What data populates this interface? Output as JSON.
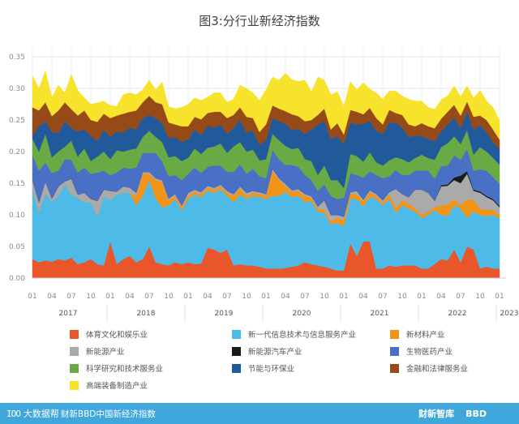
{
  "chart_data": {
    "type": "area",
    "stacked": true,
    "title": "图3:分行业新经济指数",
    "xlabel": "",
    "ylabel": "",
    "ylim": [
      0,
      0.35
    ],
    "yticks": [
      "0.00",
      "0.05",
      "0.10",
      "0.15",
      "0.20",
      "0.25",
      "0.30",
      "0.35"
    ],
    "x_tick_labels": [
      "01",
      "04",
      "07",
      "10",
      "01",
      "04",
      "07",
      "10",
      "01",
      "04",
      "07",
      "10",
      "01",
      "04",
      "07",
      "10",
      "01",
      "04",
      "07",
      "10",
      "01",
      "04",
      "07",
      "10",
      "01"
    ],
    "year_labels": [
      "2017",
      "2018",
      "2019",
      "2020",
      "2021",
      "2022",
      "2023"
    ],
    "start": "2017-01",
    "end": "2023-01",
    "grid": true,
    "legend_position": "bottom",
    "legend_columns": 3,
    "series": [
      {
        "name": "体育文化和娱乐业",
        "color": "#e8562a",
        "values": [
          0.03,
          0.025,
          0.028,
          0.026,
          0.03,
          0.028,
          0.032,
          0.022,
          0.025,
          0.03,
          0.022,
          0.02,
          0.058,
          0.022,
          0.03,
          0.035,
          0.025,
          0.03,
          0.05,
          0.025,
          0.022,
          0.02,
          0.025,
          0.022,
          0.025,
          0.022,
          0.023,
          0.048,
          0.045,
          0.04,
          0.045,
          0.02,
          0.022,
          0.02,
          0.02,
          0.018,
          0.015,
          0.015,
          0.015,
          0.016,
          0.018,
          0.02,
          0.025,
          0.022,
          0.02,
          0.018,
          0.015,
          0.012,
          0.012,
          0.055,
          0.035,
          0.058,
          0.058,
          0.015,
          0.015,
          0.02,
          0.018,
          0.02,
          0.02,
          0.02,
          0.015,
          0.015,
          0.022,
          0.03,
          0.028,
          0.045,
          0.025,
          0.05,
          0.045,
          0.015,
          0.018,
          0.015,
          0.015
        ]
      },
      {
        "name": "新一代信息技术与信息服务产业",
        "color": "#4ebae8",
        "values": [
          0.11,
          0.08,
          0.105,
          0.095,
          0.1,
          0.12,
          0.1,
          0.105,
          0.095,
          0.09,
          0.075,
          0.11,
          0.065,
          0.11,
          0.105,
          0.1,
          0.09,
          0.1,
          0.105,
          0.1,
          0.09,
          0.095,
          0.1,
          0.085,
          0.1,
          0.11,
          0.105,
          0.09,
          0.09,
          0.1,
          0.085,
          0.1,
          0.11,
          0.105,
          0.11,
          0.11,
          0.11,
          0.115,
          0.115,
          0.12,
          0.11,
          0.11,
          0.095,
          0.1,
          0.085,
          0.085,
          0.07,
          0.075,
          0.07,
          0.07,
          0.09,
          0.055,
          0.07,
          0.11,
          0.1,
          0.105,
          0.085,
          0.095,
          0.09,
          0.085,
          0.08,
          0.085,
          0.085,
          0.07,
          0.07,
          0.07,
          0.085,
          0.045,
          0.06,
          0.085,
          0.08,
          0.085,
          0.08
        ]
      },
      {
        "name": "新材料产业",
        "color": "#f29418",
        "values": [
          0.0,
          0.0,
          0.0,
          0.0,
          0.0,
          0.0,
          0.0,
          0.0,
          0.0,
          0.0,
          0.0,
          0.0,
          0.0,
          0.0,
          0.0,
          0.0,
          0.015,
          0.035,
          0.01,
          0.03,
          0.04,
          0.008,
          0.005,
          0.005,
          0.005,
          0.005,
          0.005,
          0.005,
          0.005,
          0.005,
          0.005,
          0.01,
          0.01,
          0.005,
          0.005,
          0.005,
          0.005,
          0.04,
          0.025,
          0.01,
          0.008,
          0.008,
          0.01,
          0.005,
          0.005,
          0.005,
          0.005,
          0.008,
          0.01,
          0.008,
          0.008,
          0.008,
          0.008,
          0.005,
          0.005,
          0.008,
          0.008,
          0.008,
          0.008,
          0.005,
          0.005,
          0.005,
          0.005,
          0.015,
          0.018,
          0.01,
          0.005,
          0.03,
          0.018,
          0.01,
          0.01,
          0.008,
          0.005
        ]
      },
      {
        "name": "新能源产业",
        "color": "#aaaaaa",
        "values": [
          0.015,
          0.015,
          0.02,
          0.005,
          0.015,
          0.005,
          0.025,
          0.005,
          0.015,
          0.005,
          0.025,
          0.01,
          0.015,
          0.005,
          0.01,
          0.008,
          0.005,
          0.003,
          0.003,
          0.003,
          0.003,
          0.003,
          0.003,
          0.003,
          0.005,
          0.003,
          0.003,
          0.003,
          0.003,
          0.003,
          0.003,
          0.003,
          0.003,
          0.005,
          0.003,
          0.003,
          0.003,
          0.003,
          0.003,
          0.003,
          0.003,
          0.003,
          0.003,
          0.003,
          0.003,
          0.015,
          0.01,
          0.005,
          0.005,
          0.003,
          0.005,
          0.003,
          0.003,
          0.003,
          0.003,
          0.003,
          0.03,
          0.01,
          0.01,
          0.03,
          0.04,
          0.03,
          0.01,
          0.03,
          0.03,
          0.03,
          0.035,
          0.04,
          0.015,
          0.025,
          0.02,
          0.015,
          0.012
        ]
      },
      {
        "name": "新能源汽车产业",
        "color": "#1a1a1a",
        "values": [
          0.0,
          0.0,
          0.0,
          0.0,
          0.0,
          0.0,
          0.0,
          0.0,
          0.0,
          0.0,
          0.0,
          0.0,
          0.0,
          0.0,
          0.0,
          0.0,
          0.0,
          0.0,
          0.0,
          0.0,
          0.0,
          0.0,
          0.0,
          0.0,
          0.0,
          0.0,
          0.0,
          0.0,
          0.0,
          0.0,
          0.0,
          0.0,
          0.0,
          0.0,
          0.0,
          0.0,
          0.0,
          0.0,
          0.0,
          0.0,
          0.0,
          0.0,
          0.0,
          0.0,
          0.0,
          0.0,
          0.0,
          0.0,
          0.0,
          0.0,
          0.0,
          0.0,
          0.0,
          0.0,
          0.0,
          0.0,
          0.0,
          0.0,
          0.0,
          0.0,
          0.0,
          0.0,
          0.0,
          0.002,
          0.002,
          0.004,
          0.012,
          0.004,
          0.002,
          0.002,
          0.002,
          0.002,
          0.002
        ]
      },
      {
        "name": "生物医药产业",
        "color": "#4a70c6",
        "values": [
          0.04,
          0.05,
          0.03,
          0.04,
          0.025,
          0.035,
          0.03,
          0.035,
          0.04,
          0.04,
          0.045,
          0.03,
          0.025,
          0.03,
          0.03,
          0.03,
          0.04,
          0.03,
          0.03,
          0.04,
          0.03,
          0.035,
          0.03,
          0.04,
          0.03,
          0.035,
          0.03,
          0.03,
          0.035,
          0.03,
          0.03,
          0.035,
          0.035,
          0.03,
          0.035,
          0.025,
          0.025,
          0.03,
          0.03,
          0.03,
          0.04,
          0.035,
          0.03,
          0.025,
          0.025,
          0.025,
          0.03,
          0.025,
          0.03,
          0.03,
          0.025,
          0.035,
          0.03,
          0.03,
          0.035,
          0.025,
          0.03,
          0.03,
          0.035,
          0.03,
          0.03,
          0.035,
          0.035,
          0.03,
          0.03,
          0.035,
          0.025,
          0.035,
          0.03,
          0.035,
          0.04,
          0.035,
          0.035
        ]
      },
      {
        "name": "科学研究和技术服务业",
        "color": "#6aaa45",
        "values": [
          0.025,
          0.03,
          0.045,
          0.025,
          0.03,
          0.02,
          0.03,
          0.025,
          0.03,
          0.02,
          0.025,
          0.03,
          0.025,
          0.035,
          0.025,
          0.03,
          0.03,
          0.025,
          0.035,
          0.025,
          0.03,
          0.03,
          0.03,
          0.03,
          0.025,
          0.03,
          0.03,
          0.03,
          0.03,
          0.035,
          0.03,
          0.04,
          0.035,
          0.035,
          0.03,
          0.025,
          0.03,
          0.025,
          0.03,
          0.03,
          0.025,
          0.03,
          0.025,
          0.03,
          0.025,
          0.03,
          0.025,
          0.03,
          0.015,
          0.03,
          0.03,
          0.025,
          0.03,
          0.02,
          0.02,
          0.025,
          0.02,
          0.025,
          0.02,
          0.02,
          0.025,
          0.02,
          0.03,
          0.03,
          0.035,
          0.03,
          0.025,
          0.03,
          0.025,
          0.035,
          0.03,
          0.03,
          0.03
        ]
      },
      {
        "name": "节能与环保业",
        "color": "#215a9a",
        "values": [
          0.005,
          0.04,
          0.02,
          0.04,
          0.03,
          0.04,
          0.02,
          0.04,
          0.03,
          0.04,
          0.025,
          0.035,
          0.035,
          0.03,
          0.03,
          0.035,
          0.03,
          0.03,
          0.025,
          0.03,
          0.03,
          0.03,
          0.03,
          0.03,
          0.03,
          0.03,
          0.03,
          0.035,
          0.03,
          0.03,
          0.03,
          0.03,
          0.035,
          0.03,
          0.03,
          0.025,
          0.03,
          0.025,
          0.03,
          0.035,
          0.03,
          0.03,
          0.04,
          0.05,
          0.08,
          0.07,
          0.065,
          0.07,
          0.07,
          0.05,
          0.05,
          0.06,
          0.05,
          0.05,
          0.05,
          0.06,
          0.055,
          0.05,
          0.04,
          0.035,
          0.03,
          0.03,
          0.03,
          0.025,
          0.03,
          0.03,
          0.025,
          0.03,
          0.04,
          0.035,
          0.03,
          0.025,
          0.025
        ]
      },
      {
        "name": "金融和法律服务业",
        "color": "#964a18",
        "values": [
          0.045,
          0.025,
          0.03,
          0.025,
          0.035,
          0.03,
          0.03,
          0.025,
          0.03,
          0.025,
          0.03,
          0.025,
          0.03,
          0.025,
          0.03,
          0.025,
          0.03,
          0.025,
          0.03,
          0.025,
          0.03,
          0.025,
          0.02,
          0.025,
          0.02,
          0.02,
          0.025,
          0.02,
          0.025,
          0.02,
          0.025,
          0.02,
          0.02,
          0.025,
          0.02,
          0.02,
          0.025,
          0.02,
          0.02,
          0.02,
          0.025,
          0.02,
          0.02,
          0.015,
          0.015,
          0.02,
          0.015,
          0.02,
          0.015,
          0.02,
          0.02,
          0.015,
          0.02,
          0.02,
          0.015,
          0.02,
          0.015,
          0.02,
          0.02,
          0.015,
          0.02,
          0.02,
          0.02,
          0.02,
          0.02,
          0.02,
          0.02,
          0.015,
          0.02,
          0.015,
          0.02,
          0.02,
          0.015
        ]
      },
      {
        "name": "高端装备制造产业",
        "color": "#f7e22c",
        "values": [
          0.05,
          0.035,
          0.05,
          0.03,
          0.04,
          0.015,
          0.055,
          0.04,
          0.02,
          0.025,
          0.03,
          0.02,
          0.02,
          0.015,
          0.03,
          0.03,
          0.025,
          0.02,
          0.025,
          0.02,
          0.035,
          0.025,
          0.025,
          0.03,
          0.035,
          0.03,
          0.03,
          0.025,
          0.03,
          0.03,
          0.025,
          0.025,
          0.035,
          0.045,
          0.04,
          0.05,
          0.055,
          0.045,
          0.045,
          0.06,
          0.055,
          0.055,
          0.065,
          0.045,
          0.06,
          0.045,
          0.055,
          0.05,
          0.045,
          0.045,
          0.035,
          0.05,
          0.03,
          0.04,
          0.04,
          0.03,
          0.035,
          0.03,
          0.04,
          0.04,
          0.035,
          0.03,
          0.03,
          0.03,
          0.025,
          0.03,
          0.03,
          0.025,
          0.03,
          0.04,
          0.03,
          0.035,
          0.03
        ]
      }
    ]
  },
  "footer": {
    "logo_text": "大数据帮",
    "left_text": "财新BBD中国新经济指数",
    "right_brand_1": "财新智库",
    "right_brand_2": "BBD"
  }
}
